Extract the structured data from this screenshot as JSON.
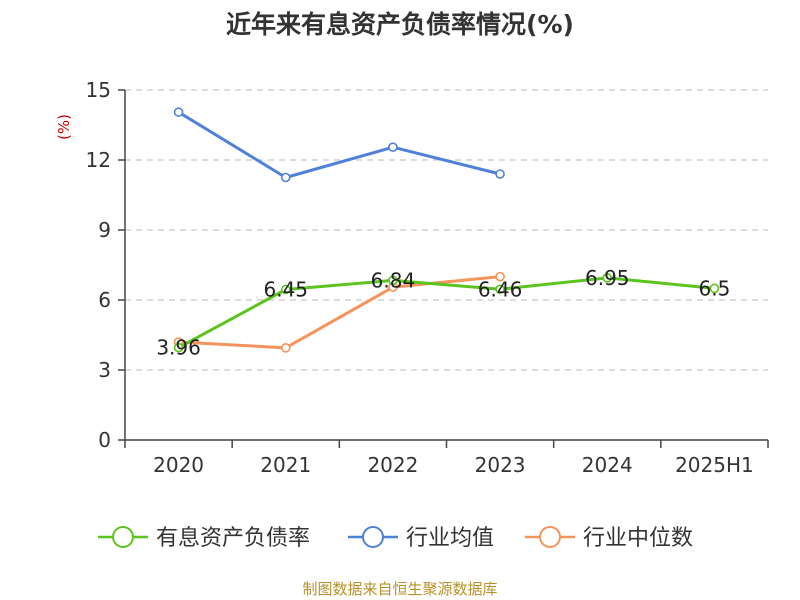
{
  "chart_data": {
    "type": "line",
    "title": "近年来有息资产负债率情况(%)",
    "unit": "(%)",
    "categories": [
      "2020",
      "2021",
      "2022",
      "2023",
      "2024",
      "2025H1"
    ],
    "ylim": [
      0,
      15
    ],
    "yticks": [
      0,
      3,
      6,
      9,
      12,
      15
    ],
    "grid": true,
    "legend_position": "bottom",
    "series": [
      {
        "name": "有息资产负债率",
        "color": "#5cc41e",
        "values": [
          3.96,
          6.45,
          6.84,
          6.46,
          6.95,
          6.5
        ],
        "labels": [
          "3.96",
          "6.45",
          "6.84",
          "6.46",
          "6.95",
          "6.5"
        ]
      },
      {
        "name": "行业均值",
        "color": "#4f81d9",
        "values": [
          14.05,
          11.25,
          12.55,
          11.4,
          null,
          null
        ]
      },
      {
        "name": "行业中位数",
        "color": "#f4935c",
        "values": [
          4.2,
          3.95,
          6.55,
          7.0,
          null,
          null
        ]
      }
    ],
    "source": "制图数据来自恒生聚源数据库"
  }
}
